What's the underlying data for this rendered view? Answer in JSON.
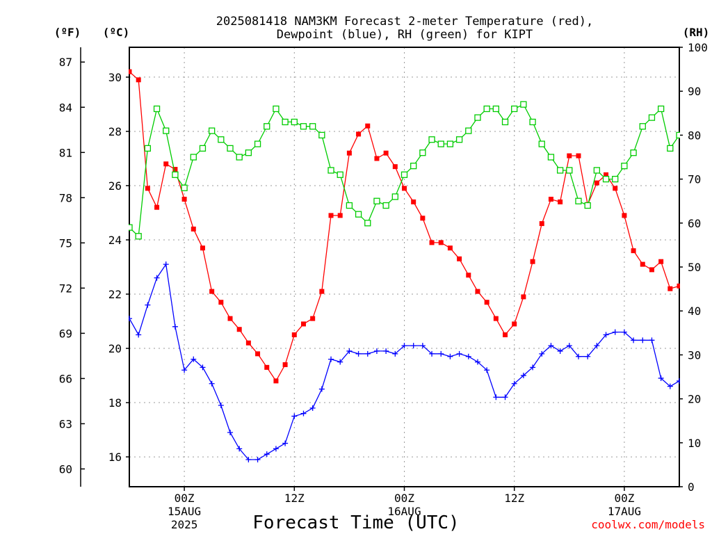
{
  "chart_data": {
    "type": "line",
    "title_line1": "2025081418 NAM3KM Forecast 2-meter Temperature (red),",
    "title_line2": "Dewpoint (blue), RH (green) for KIPT",
    "xlabel": "Forecast Time (UTC)",
    "credit": "coolwx.com/models",
    "unit_f": "(ºF)",
    "unit_c": "(ºC)",
    "unit_rh": "(RH)",
    "grid": true,
    "x_unit": "forecast hour from 2025-08-14 18Z",
    "xlim": [
      0,
      60
    ],
    "x_ticks": [
      {
        "value": 6,
        "label": "00Z",
        "date": "15AUG",
        "year": "2025"
      },
      {
        "value": 18,
        "label": "12Z",
        "date": "",
        "year": ""
      },
      {
        "value": 30,
        "label": "00Z",
        "date": "16AUG",
        "year": ""
      },
      {
        "value": 42,
        "label": "12Z",
        "date": "",
        "year": ""
      },
      {
        "value": 54,
        "label": "00Z",
        "date": "17AUG",
        "year": ""
      }
    ],
    "y_celsius": {
      "lim": [
        14.9,
        31.1
      ],
      "ticks": [
        "16",
        "18",
        "20",
        "22",
        "24",
        "26",
        "28",
        "30"
      ]
    },
    "y_fahrenheit": {
      "ticks": [
        "60",
        "63",
        "66",
        "69",
        "72",
        "75",
        "78",
        "81",
        "84",
        "87"
      ]
    },
    "y_rh": {
      "lim": [
        0,
        100
      ],
      "ticks": [
        "0",
        "10",
        "20",
        "30",
        "40",
        "50",
        "60",
        "70",
        "80",
        "90",
        "100"
      ]
    },
    "x": [
      0,
      1,
      2,
      3,
      4,
      5,
      6,
      7,
      8,
      9,
      10,
      11,
      12,
      13,
      14,
      15,
      16,
      17,
      18,
      19,
      20,
      21,
      22,
      23,
      24,
      25,
      26,
      27,
      28,
      29,
      30,
      31,
      32,
      33,
      34,
      35,
      36,
      37,
      38,
      39,
      40,
      41,
      42,
      43,
      44,
      45,
      46,
      47,
      48,
      49,
      50,
      51,
      52,
      53,
      54,
      55,
      56,
      57,
      58,
      59,
      60
    ],
    "series": [
      {
        "name": "Temperature",
        "axis": "celsius",
        "color": "#ff0000",
        "marker": "square-filled",
        "values": [
          30.2,
          29.9,
          25.9,
          25.2,
          26.8,
          26.6,
          25.5,
          24.4,
          23.7,
          22.1,
          21.7,
          21.1,
          20.7,
          20.2,
          19.8,
          19.3,
          18.8,
          19.4,
          20.5,
          20.9,
          21.1,
          22.1,
          24.9,
          24.9,
          27.2,
          27.9,
          28.2,
          27.0,
          27.2,
          26.7,
          25.9,
          25.4,
          24.8,
          23.9,
          23.9,
          23.7,
          23.3,
          22.7,
          22.1,
          21.7,
          21.1,
          20.5,
          20.9,
          21.9,
          23.2,
          24.6,
          25.5,
          25.4,
          27.1,
          27.1,
          25.3,
          26.1,
          26.4,
          25.9,
          24.9,
          23.6,
          23.1,
          22.9,
          23.2,
          22.2,
          22.3
        ]
      },
      {
        "name": "Dewpoint",
        "axis": "celsius",
        "color": "#0000ff",
        "marker": "plus",
        "values": [
          21.1,
          20.5,
          21.6,
          22.6,
          23.1,
          20.8,
          19.2,
          19.6,
          19.3,
          18.7,
          17.9,
          16.9,
          16.3,
          15.9,
          15.9,
          16.1,
          16.3,
          16.5,
          17.5,
          17.6,
          17.8,
          18.5,
          19.6,
          19.5,
          19.9,
          19.8,
          19.8,
          19.9,
          19.9,
          19.8,
          20.1,
          20.1,
          20.1,
          19.8,
          19.8,
          19.7,
          19.8,
          19.7,
          19.5,
          19.2,
          18.2,
          18.2,
          18.7,
          19.0,
          19.3,
          19.8,
          20.1,
          19.9,
          20.1,
          19.7,
          19.7,
          20.1,
          20.5,
          20.6,
          20.6,
          20.3,
          20.3,
          20.3,
          18.9,
          18.6,
          18.8
        ]
      },
      {
        "name": "RH",
        "axis": "rh",
        "color": "#00cc00",
        "marker": "square-open",
        "values": [
          59,
          57,
          77,
          86,
          81,
          71,
          68,
          75,
          77,
          81,
          79,
          77,
          75,
          76,
          78,
          82,
          86,
          83,
          83,
          82,
          82,
          80,
          72,
          71,
          64,
          62,
          60,
          65,
          64,
          66,
          71,
          73,
          76,
          79,
          78,
          78,
          79,
          81,
          84,
          86,
          86,
          83,
          86,
          87,
          83,
          78,
          75,
          72,
          72,
          65,
          64,
          72,
          70,
          70,
          73,
          76,
          82,
          84,
          86,
          77,
          80
        ]
      }
    ]
  }
}
